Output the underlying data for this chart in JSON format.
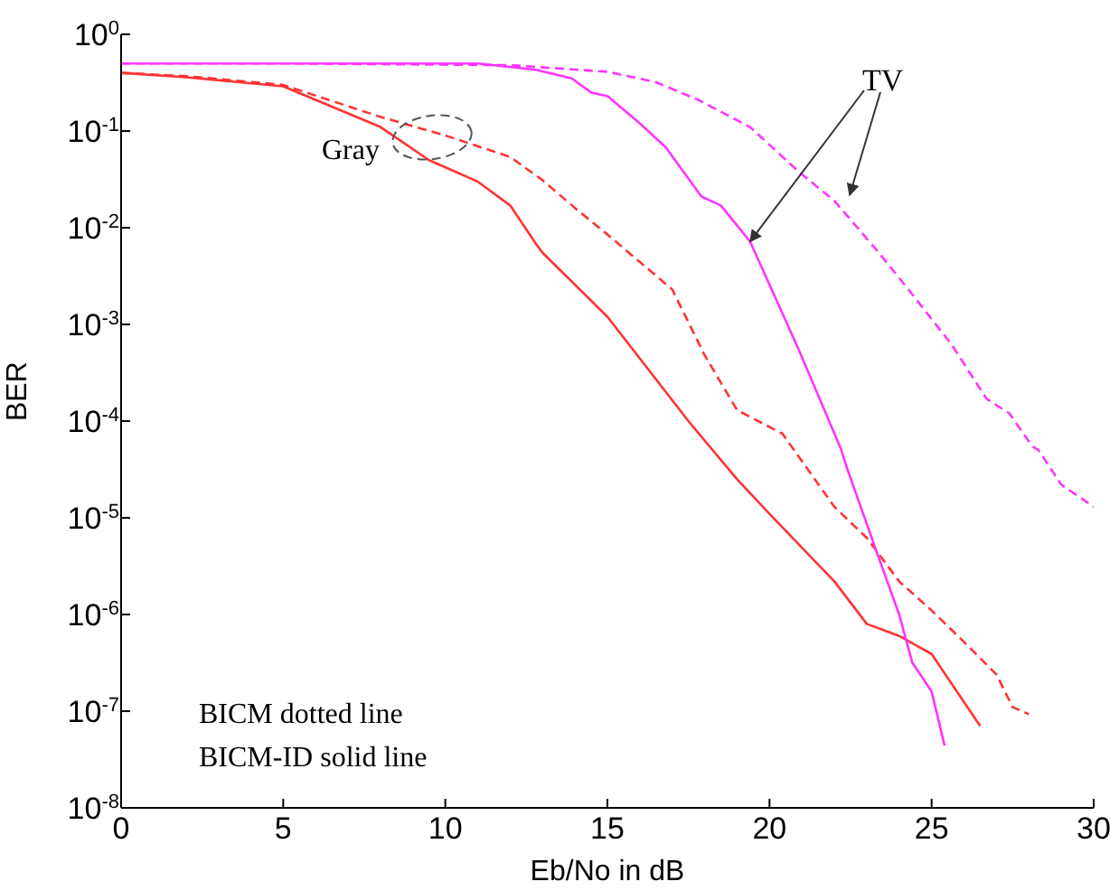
{
  "chart_data": {
    "type": "line",
    "xlabel": "Eb/No in dB",
    "ylabel": "BER",
    "log": "y",
    "grid": false,
    "legend": false,
    "marker": "none",
    "xlim": [
      0,
      30
    ],
    "xticks": [
      0,
      5,
      10,
      15,
      20,
      25,
      30
    ],
    "ylim": [
      1e-08,
      1
    ],
    "yticks": [
      {
        "value": 1,
        "label": "10$^{0}$"
      },
      {
        "value": 0.1,
        "label": "10$^{-1}$"
      },
      {
        "value": 0.01,
        "label": "10$^{-2}$"
      },
      {
        "value": 0.001,
        "label": "10$^{-3}$"
      },
      {
        "value": 0.0001,
        "label": "10$^{-4}$"
      },
      {
        "value": 1e-05,
        "label": "10$^{-5}$"
      },
      {
        "value": 1e-06,
        "label": "10$^{-6}$"
      },
      {
        "value": 1e-07,
        "label": "10$^{-7}$"
      },
      {
        "value": 1e-08,
        "label": "10$^{-8}$"
      }
    ],
    "annotations": [
      "Gray",
      {
        "text": "TV",
        "x": 19.4,
        "y": 0.0072
      },
      "BICM dotted line",
      "BICM-ID solid line"
    ],
    "series": [
      {
        "color": "#ff3333",
        "line_style": "solid",
        "x": [
          0,
          2,
          5,
          8,
          9.5,
          11,
          12,
          12.8,
          13,
          15,
          17.5,
          19,
          20,
          22,
          23,
          24,
          25,
          26.5
        ],
        "values": [
          0.4,
          0.36,
          0.29,
          0.11,
          0.05,
          0.03,
          0.017,
          0.0068,
          0.0055,
          0.0012,
          0.0001,
          2.5e-05,
          1.1e-05,
          2.2e-06,
          8e-07,
          6e-07,
          3.9e-07,
          7e-08
        ]
      },
      {
        "color": "#ff3333",
        "line_style": "dashed",
        "x": [
          0,
          2,
          5,
          8,
          10,
          12,
          13,
          14,
          15,
          17,
          18,
          19,
          20.4,
          22,
          23,
          24,
          25,
          26,
          27,
          27.5,
          28
        ],
        "values": [
          0.4,
          0.37,
          0.3,
          0.14,
          0.09,
          0.054,
          0.031,
          0.016,
          0.0085,
          0.0023,
          0.00048,
          0.00013,
          7.4e-05,
          1.3e-05,
          6.2e-06,
          2.2e-06,
          1.1e-06,
          5.2e-07,
          2.4e-07,
          1.1e-07,
          9.3e-08
        ]
      },
      {
        "color": "#ff33ff",
        "line_style": "solid",
        "x": [
          0,
          5,
          11,
          12.8,
          13.9,
          14.5,
          15,
          16,
          16.8,
          17.9,
          18.5,
          19.4,
          20.9,
          22.2,
          22.4,
          23.3,
          24,
          24.4,
          25,
          25.4
        ],
        "values": [
          0.5,
          0.5,
          0.5,
          0.43,
          0.35,
          0.25,
          0.23,
          0.12,
          0.068,
          0.021,
          0.017,
          0.0072,
          0.00055,
          5.2e-05,
          3.2e-05,
          4.5e-06,
          1e-06,
          3.2e-07,
          1.6e-07,
          4.4e-08
        ]
      },
      {
        "color": "#ff33ff",
        "line_style": "dashed",
        "x": [
          0,
          5,
          12,
          12.8,
          15,
          16.5,
          17.8,
          19.4,
          20.9,
          22,
          23.3,
          24.2,
          25.6,
          26.7,
          27.4,
          28.1,
          28.3,
          29,
          30
        ],
        "values": [
          0.5,
          0.5,
          0.48,
          0.46,
          0.41,
          0.32,
          0.21,
          0.11,
          0.038,
          0.019,
          0.0059,
          0.0025,
          0.00063,
          0.00017,
          0.00012,
          5.5e-05,
          5e-05,
          2.2e-05,
          1.3e-05
        ]
      }
    ]
  }
}
